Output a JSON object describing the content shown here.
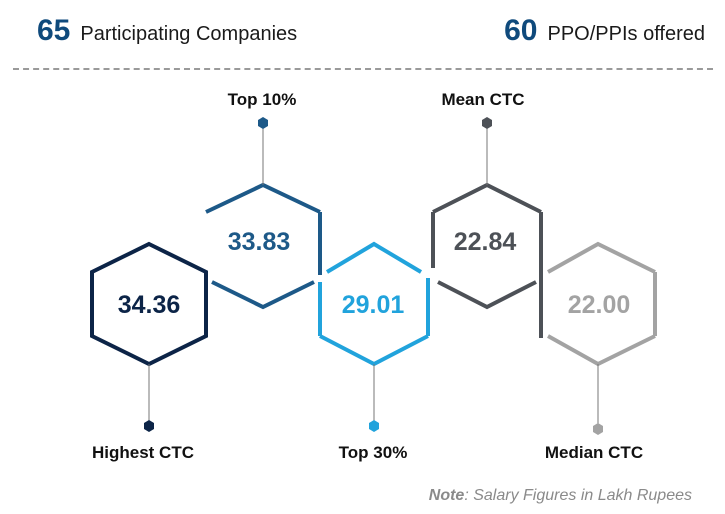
{
  "header": {
    "companies": {
      "value": "65",
      "label": "Participating Companies"
    },
    "offers": {
      "value": "60",
      "label": "PPO/PPIs offered"
    }
  },
  "metrics": [
    {
      "label": "Highest CTC",
      "value": "34.36",
      "color": "#0c2447"
    },
    {
      "label": "Top 10%",
      "value": "33.83",
      "color": "#1d5988"
    },
    {
      "label": "Top 30%",
      "value": "29.01",
      "color": "#21a3dc"
    },
    {
      "label": "Mean CTC",
      "value": "22.84",
      "color": "#4d5157"
    },
    {
      "label": "Median CTC",
      "value": "22.00",
      "color": "#a3a3a3"
    }
  ],
  "note": {
    "prefix": "Note",
    "text": ": Salary Figures in Lakh Rupees"
  }
}
